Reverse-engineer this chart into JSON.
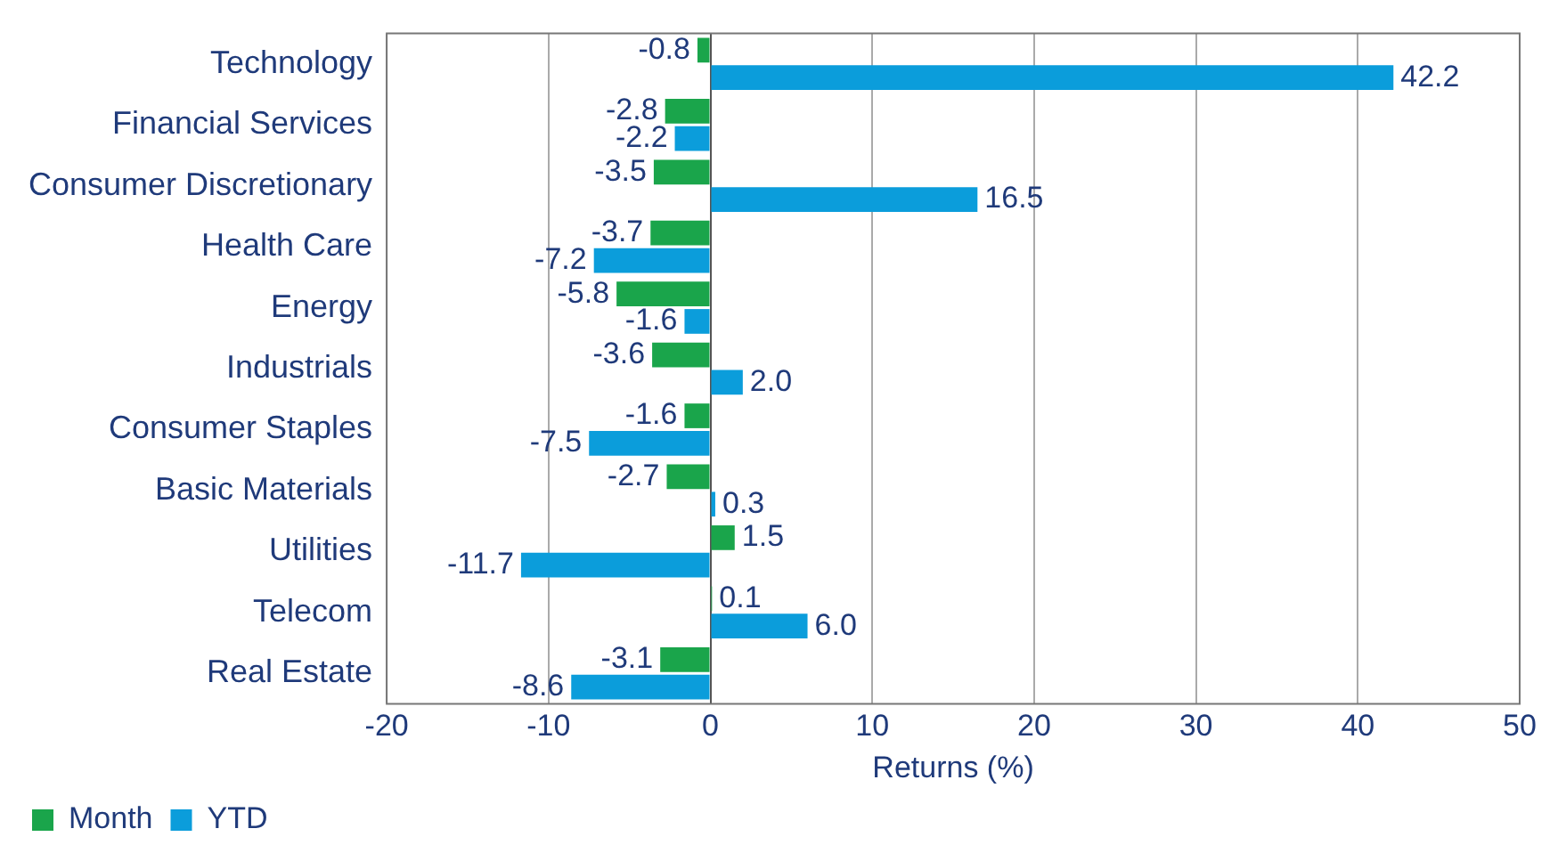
{
  "chart_data": {
    "type": "bar",
    "orientation": "horizontal",
    "xlabel": "Returns (%)",
    "categories": [
      "Technology",
      "Financial Services",
      "Consumer Discretionary",
      "Health Care",
      "Energy",
      "Industrials",
      "Consumer Staples",
      "Basic Materials",
      "Utilities",
      "Telecom",
      "Real Estate"
    ],
    "series": [
      {
        "name": "Month",
        "color": "#1aa54b",
        "values": [
          -0.8,
          -2.8,
          -3.5,
          -3.7,
          -5.8,
          -3.6,
          -1.6,
          -2.7,
          1.5,
          0.1,
          -3.1
        ],
        "value_labels": [
          "-0.8",
          "-2.8",
          "-3.5",
          "-3.7",
          "-5.8",
          "-3.6",
          "-1.6",
          "-2.7",
          "1.5",
          "0.1",
          "-3.1"
        ]
      },
      {
        "name": "YTD",
        "color": "#0b9ddb",
        "values": [
          42.2,
          -2.2,
          16.5,
          -7.2,
          -1.6,
          2.0,
          -7.5,
          0.3,
          -11.7,
          6.0,
          -8.6
        ],
        "value_labels": [
          "42.2",
          "-2.2",
          "16.5",
          "-7.2",
          "-1.6",
          "2.0",
          "-7.5",
          "0.3",
          "-11.7",
          "6.0",
          "-8.6"
        ]
      }
    ],
    "xlim": [
      -20,
      50
    ],
    "xticks": [
      -20,
      -10,
      0,
      10,
      20,
      30,
      40,
      50
    ],
    "grid": "x",
    "legend": "bottom left"
  }
}
